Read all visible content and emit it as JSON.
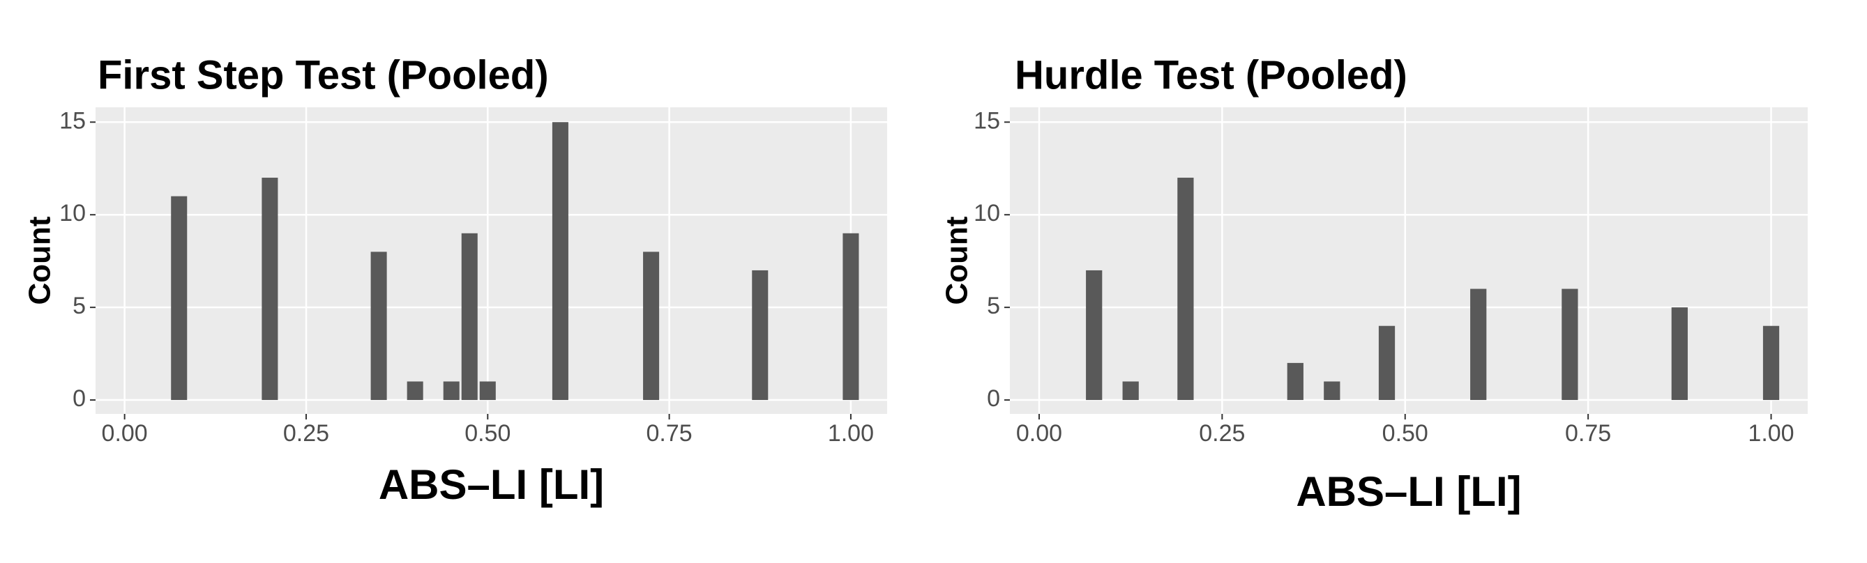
{
  "chart_data": [
    {
      "type": "histogram",
      "title": "First Step Test (Pooled)",
      "xlabel": "ABS–LI [LI]",
      "ylabel": "Count",
      "color": "#595959",
      "grid": true,
      "bins": [
        -0.0125,
        0.0125,
        0.0375,
        0.0625,
        0.0875,
        0.1125,
        0.1375,
        0.1625,
        0.1875,
        0.2125,
        0.2375,
        0.2625,
        0.2875,
        0.3125,
        0.3375,
        0.3625,
        0.3875,
        0.4125,
        0.4375,
        0.4625,
        0.4875,
        0.5125,
        0.5375,
        0.5625,
        0.5875,
        0.6125,
        0.6375,
        0.6625,
        0.6875,
        0.7125,
        0.7375,
        0.7625,
        0.7875,
        0.8125,
        0.8375,
        0.8625,
        0.8875,
        0.9125,
        0.9375,
        0.9625,
        0.9875,
        1.0125
      ],
      "counts": [
        0,
        0,
        0,
        11,
        0,
        0,
        0,
        0,
        12,
        0,
        0,
        0,
        0,
        0,
        8,
        0,
        1,
        0,
        1,
        9,
        1,
        0,
        0,
        0,
        15,
        0,
        0,
        0,
        0,
        8,
        0,
        0,
        0,
        0,
        0,
        7,
        0,
        0,
        0,
        0,
        9
      ],
      "xlim": [
        -0.04,
        1.05
      ],
      "ylim": [
        -0.75,
        15.8
      ],
      "xticks": [
        {
          "value": 0,
          "label": "0.00"
        },
        {
          "value": 0.25,
          "label": "0.25"
        },
        {
          "value": 0.5,
          "label": "0.50"
        },
        {
          "value": 0.75,
          "label": "0.75"
        },
        {
          "value": 1,
          "label": "1.00"
        }
      ],
      "yticks": [
        0,
        5,
        10,
        15
      ]
    },
    {
      "type": "histogram",
      "title": "Hurdle Test (Pooled)",
      "xlabel": "ABS–LI [LI]",
      "ylabel": "Count",
      "color": "#595959",
      "grid": true,
      "bins": [
        -0.0125,
        0.0125,
        0.0375,
        0.0625,
        0.0875,
        0.1125,
        0.1375,
        0.1625,
        0.1875,
        0.2125,
        0.2375,
        0.2625,
        0.2875,
        0.3125,
        0.3375,
        0.3625,
        0.3875,
        0.4125,
        0.4375,
        0.4625,
        0.4875,
        0.5125,
        0.5375,
        0.5625,
        0.5875,
        0.6125,
        0.6375,
        0.6625,
        0.6875,
        0.7125,
        0.7375,
        0.7625,
        0.7875,
        0.8125,
        0.8375,
        0.8625,
        0.8875,
        0.9125,
        0.9375,
        0.9625,
        0.9875,
        1.0125
      ],
      "counts": [
        0,
        0,
        0,
        7,
        0,
        1,
        0,
        0,
        12,
        0,
        0,
        0,
        0,
        0,
        2,
        0,
        1,
        0,
        0,
        4,
        0,
        0,
        0,
        0,
        6,
        0,
        0,
        0,
        0,
        6,
        0,
        0,
        0,
        0,
        0,
        5,
        0,
        0,
        0,
        0,
        4
      ],
      "xlim": [
        -0.04,
        1.05
      ],
      "ylim": [
        -0.75,
        15.8
      ],
      "xticks": [
        {
          "value": 0,
          "label": "0.00"
        },
        {
          "value": 0.25,
          "label": "0.25"
        },
        {
          "value": 0.5,
          "label": "0.50"
        },
        {
          "value": 0.75,
          "label": "0.75"
        },
        {
          "value": 1,
          "label": "1.00"
        }
      ],
      "yticks": [
        0,
        5,
        10,
        15
      ]
    }
  ]
}
